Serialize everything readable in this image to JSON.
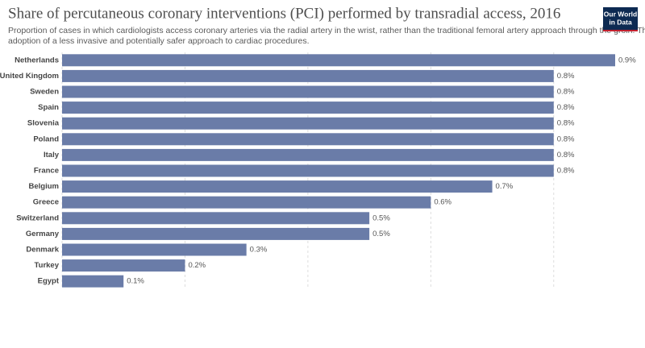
{
  "chart_data": {
    "type": "bar",
    "orientation": "horizontal",
    "title": "Share of percutaneous coronary interventions (PCI) performed by transradial access, 2016",
    "subtitle": [
      "Proportion of cases in which cardiologists access coronary arteries via the radial artery in the wrist, rather than the traditional femoral artery approach through the groin. This reflects the",
      "adoption of a less invasive and potentially safer approach to cardiac procedures."
    ],
    "logo": [
      "Our World",
      "in Data"
    ],
    "categories": [
      "Netherlands",
      "United Kingdom",
      "Sweden",
      "Spain",
      "Slovenia",
      "Poland",
      "Italy",
      "France",
      "Belgium",
      "Greece",
      "Switzerland",
      "Germany",
      "Denmark",
      "Turkey",
      "Egypt"
    ],
    "values": [
      0.9,
      0.8,
      0.8,
      0.8,
      0.8,
      0.8,
      0.8,
      0.8,
      0.7,
      0.6,
      0.5,
      0.5,
      0.3,
      0.2,
      0.1
    ],
    "value_labels": [
      "0.9%",
      "0.8%",
      "0.8%",
      "0.8%",
      "0.8%",
      "0.8%",
      "0.8%",
      "0.8%",
      "0.7%",
      "0.6%",
      "0.5%",
      "0.5%",
      "0.3%",
      "0.2%",
      "0.1%"
    ],
    "color": "#6a7ca8",
    "xlim": [
      0,
      0.9
    ],
    "xticks": [
      0,
      0.2,
      0.4,
      0.6,
      0.8
    ],
    "grid": true
  }
}
